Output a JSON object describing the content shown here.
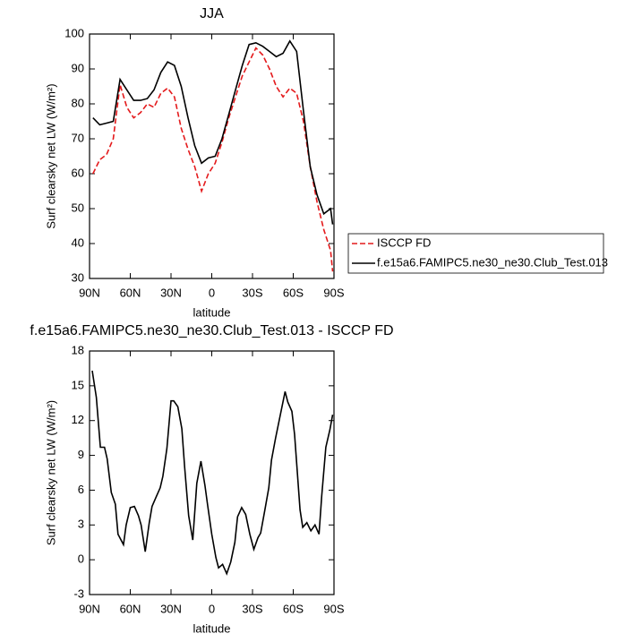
{
  "chart_data": [
    {
      "type": "line",
      "title": "JJA",
      "xlabel": "latitude",
      "ylabel": "Surf clearsky net LW (W/m²)",
      "xlim": [
        90,
        -90
      ],
      "ylim": [
        30,
        100
      ],
      "xticks": [
        {
          "value": 90,
          "label": "90N"
        },
        {
          "value": 60,
          "label": "60N"
        },
        {
          "value": 30,
          "label": "30N"
        },
        0,
        {
          "value": -30,
          "label": "30S"
        },
        {
          "value": -60,
          "label": "60S"
        },
        {
          "value": -90,
          "label": "90S"
        }
      ],
      "yticks": [
        30,
        40,
        50,
        60,
        70,
        80,
        90,
        100
      ],
      "legend": "outside right",
      "x": [
        87.5,
        82.5,
        77.5,
        72.5,
        67.5,
        62.5,
        57.5,
        52.5,
        47.5,
        42.5,
        37.5,
        32.5,
        27.5,
        22.5,
        17.5,
        12.5,
        7.5,
        2.5,
        -2.5,
        -7.5,
        -12.5,
        -17.5,
        -22.5,
        -27.5,
        -32.5,
        -37.5,
        -42.5,
        -47.5,
        -52.5,
        -57.5,
        -62.5,
        -67.5,
        -72.5,
        -77.5,
        -82.5,
        -87.5,
        -89
      ],
      "series": [
        {
          "name": "ISCCP FD",
          "color": "#e41a1c",
          "dash": true,
          "values": [
            60,
            64,
            65.5,
            70,
            85.5,
            79,
            76,
            77.5,
            80,
            79,
            83,
            84.5,
            82,
            73,
            67,
            62,
            55,
            60,
            63,
            69,
            76,
            82,
            88,
            92,
            96,
            94,
            90,
            85,
            82,
            84.5,
            83,
            75,
            62,
            52,
            44,
            38,
            32
          ]
        },
        {
          "name": "f.e15a6.FAMIPC5.ne30_ne30.Club_Test.013",
          "color": "#000000",
          "dash": false,
          "values": [
            76,
            74,
            74.5,
            75,
            87,
            84,
            81,
            81,
            81.5,
            84,
            89,
            92,
            91,
            85,
            76,
            68,
            63,
            64.5,
            65,
            70,
            77,
            84,
            91,
            97,
            97.5,
            96.5,
            95,
            93.5,
            94.5,
            98,
            95,
            78,
            62,
            54,
            48.5,
            50,
            45.5
          ]
        }
      ]
    },
    {
      "type": "line",
      "title": "f.e15a6.FAMIPC5.ne30_ne30.Club_Test.013 - ISCCP FD",
      "xlabel": "latitude",
      "ylabel": "Surf clearsky net LW (W/m²)",
      "xlim": [
        90,
        -90
      ],
      "ylim": [
        -3,
        18
      ],
      "xticks": [
        {
          "value": 90,
          "label": "90N"
        },
        {
          "value": 60,
          "label": "60N"
        },
        {
          "value": 30,
          "label": "30N"
        },
        0,
        {
          "value": -30,
          "label": "30S"
        },
        {
          "value": -60,
          "label": "60S"
        },
        {
          "value": -90,
          "label": "90S"
        }
      ],
      "yticks": [
        -3,
        0,
        3,
        6,
        9,
        12,
        15,
        18
      ],
      "color": "#000000",
      "x": [
        88,
        85,
        82,
        79,
        77,
        74,
        71,
        69,
        65,
        63,
        60,
        57,
        54,
        52,
        49,
        46,
        44,
        41,
        38,
        36,
        33,
        30,
        28,
        25,
        22,
        20,
        17,
        14,
        11,
        8,
        5,
        3,
        0,
        -3,
        -5,
        -8,
        -11,
        -14,
        -17,
        -19,
        -22,
        -25,
        -28,
        -31,
        -34,
        -36,
        -39,
        -42,
        -44,
        -47,
        -50,
        -54,
        -56,
        -59,
        -61,
        -65,
        -67,
        -70,
        -73,
        -76,
        -79,
        -81,
        -84,
        -87,
        -89
      ],
      "values": [
        16.3,
        14,
        9.7,
        9.7,
        8.7,
        5.8,
        4.8,
        2.2,
        1.3,
        3,
        4.5,
        4.6,
        3.8,
        3,
        0.7,
        3.2,
        4.6,
        5.4,
        6.2,
        7.2,
        9.6,
        13.7,
        13.7,
        13.2,
        11.3,
        8,
        3.8,
        1.7,
        6.6,
        8.5,
        6.4,
        4.7,
        2.2,
        0.2,
        -0.7,
        -0.4,
        -1.2,
        -0.2,
        1.5,
        3.7,
        4.5,
        3.9,
        2.2,
        0.9,
        1.9,
        2.3,
        4.2,
        6.2,
        8.6,
        10.5,
        12.2,
        14.5,
        13.6,
        12.8,
        10.8,
        4.3,
        2.8,
        3.2,
        2.5,
        3,
        2.2,
        5.5,
        9.7,
        11.2,
        12.5
      ]
    }
  ]
}
